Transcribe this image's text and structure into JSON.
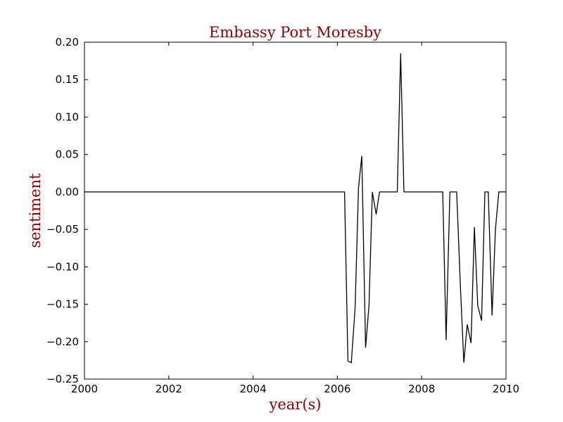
{
  "chart_data": {
    "type": "line",
    "title": "Embassy Port Moresby",
    "xlabel": "year(s)",
    "ylabel": "sentiment",
    "xlim": [
      2000,
      2010
    ],
    "ylim": [
      -0.25,
      0.2
    ],
    "x_ticks": [
      2000,
      2002,
      2004,
      2006,
      2008,
      2010
    ],
    "x_tick_labels": [
      "2000",
      "2002",
      "2004",
      "2006",
      "2008",
      "2010"
    ],
    "y_ticks": [
      0.2,
      0.15,
      0.1,
      0.05,
      0.0,
      -0.05,
      -0.1,
      -0.15,
      -0.2,
      -0.25
    ],
    "y_tick_labels": [
      "0.20",
      "0.15",
      "0.10",
      "0.05",
      "0.00",
      "−0.05",
      "−0.10",
      "−0.15",
      "−0.20",
      "−0.25"
    ],
    "grid": false,
    "series": [
      {
        "color": "#000000",
        "x": [
          2000.0,
          2006.17,
          2006.25,
          2006.33,
          2006.42,
          2006.5,
          2006.58,
          2006.67,
          2006.75,
          2006.83,
          2006.92,
          2007.0,
          2007.08,
          2007.17,
          2007.25,
          2007.33,
          2007.42,
          2007.5,
          2007.58,
          2007.67,
          2007.75,
          2007.83,
          2007.92,
          2008.0,
          2008.08,
          2008.17,
          2008.25,
          2008.33,
          2008.42,
          2008.5,
          2008.58,
          2008.67,
          2008.75,
          2008.83,
          2008.92,
          2009.0,
          2009.08,
          2009.17,
          2009.25,
          2009.33,
          2009.42,
          2009.5,
          2009.58,
          2009.67,
          2009.75,
          2009.83,
          2009.92,
          2010.0
        ],
        "y": [
          0.0,
          0.0,
          -0.226,
          -0.228,
          -0.155,
          0.005,
          0.048,
          -0.208,
          -0.152,
          0.0,
          -0.03,
          0.0,
          0.0,
          0.0,
          0.0,
          0.0,
          0.0,
          0.185,
          0.0,
          0.0,
          0.0,
          0.0,
          0.0,
          0.0,
          0.0,
          0.0,
          0.0,
          0.0,
          0.0,
          0.0,
          -0.198,
          0.0,
          0.0,
          0.0,
          -0.128,
          -0.228,
          -0.177,
          -0.202,
          -0.047,
          -0.152,
          -0.172,
          0.0,
          0.0,
          -0.165,
          -0.05,
          0.0,
          0.0,
          0.0
        ]
      }
    ]
  }
}
